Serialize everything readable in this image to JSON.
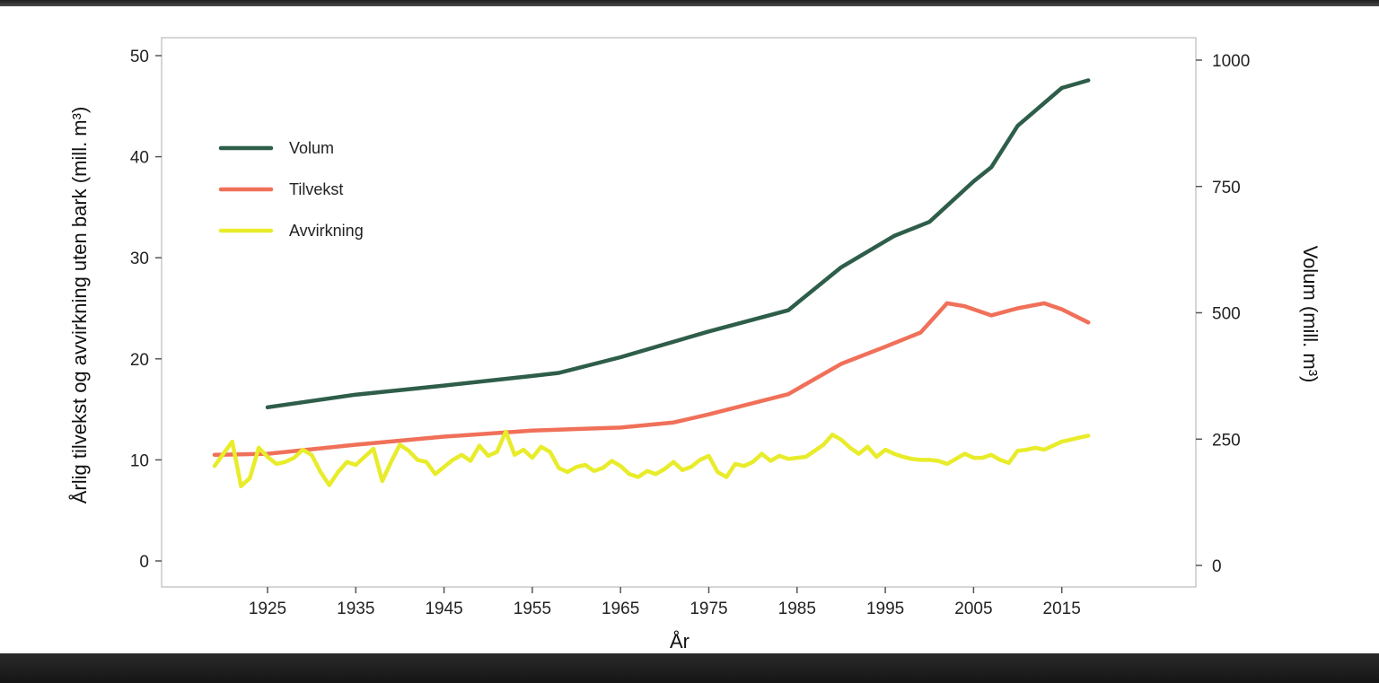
{
  "chart_data": {
    "type": "line",
    "xlabel": "År",
    "ylabel_left": "Årlig tilvekst og avvirkning uten bark (mill. m³)",
    "ylabel_right": "Volum (mill. m³)",
    "xlim": [
      1918,
      2022
    ],
    "ylim_left": [
      0,
      50
    ],
    "ylim_right": [
      0,
      1000
    ],
    "x_ticks": [
      1925,
      1935,
      1945,
      1955,
      1965,
      1975,
      1985,
      1995,
      2005,
      2015
    ],
    "y_ticks_left": [
      0,
      10,
      20,
      30,
      40,
      50
    ],
    "y_ticks_right": [
      0,
      250,
      500,
      750,
      1000
    ],
    "grid": false,
    "legend_position": "top-left",
    "series": [
      {
        "name": "Volum",
        "axis": "right",
        "color": "#2e5e4a",
        "x": [
          1925,
          1935,
          1945,
          1955,
          1958,
          1965,
          1975,
          1984,
          1990,
          1996,
          2000,
          2005,
          2007,
          2010,
          2015,
          2018
        ],
        "y": [
          313,
          338,
          356,
          375,
          381,
          412,
          463,
          505,
          590,
          652,
          680,
          760,
          788,
          870,
          945,
          960
        ]
      },
      {
        "name": "Tilvekst",
        "axis": "left",
        "color": "#f07059",
        "x": [
          1919,
          1925,
          1935,
          1945,
          1955,
          1965,
          1971,
          1975,
          1984,
          1990,
          1995,
          1999,
          2002,
          2004,
          2007,
          2010,
          2013,
          2015,
          2018
        ],
        "y": [
          10.5,
          10.6,
          11.5,
          12.3,
          12.9,
          13.2,
          13.7,
          14.5,
          16.5,
          19.5,
          21.2,
          22.6,
          25.5,
          25.2,
          24.3,
          25.0,
          25.5,
          24.9,
          23.6
        ]
      },
      {
        "name": "Avvirkning",
        "axis": "left",
        "color": "#e8ec2a",
        "x": [
          1919,
          1920,
          1921,
          1922,
          1923,
          1924,
          1925,
          1926,
          1927,
          1928,
          1929,
          1930,
          1931,
          1932,
          1933,
          1934,
          1935,
          1936,
          1937,
          1938,
          1939,
          1940,
          1941,
          1942,
          1943,
          1944,
          1945,
          1946,
          1947,
          1948,
          1949,
          1950,
          1951,
          1952,
          1953,
          1954,
          1955,
          1956,
          1957,
          1958,
          1959,
          1960,
          1961,
          1962,
          1963,
          1964,
          1965,
          1966,
          1967,
          1968,
          1969,
          1970,
          1971,
          1972,
          1973,
          1974,
          1975,
          1976,
          1977,
          1978,
          1979,
          1980,
          1981,
          1982,
          1983,
          1984,
          1985,
          1986,
          1987,
          1988,
          1989,
          1990,
          1991,
          1992,
          1993,
          1994,
          1995,
          1996,
          1997,
          1998,
          1999,
          2000,
          2001,
          2002,
          2003,
          2004,
          2005,
          2006,
          2007,
          2008,
          2009,
          2010,
          2011,
          2012,
          2013,
          2014,
          2015,
          2016,
          2017,
          2018
        ],
        "y": [
          9.4,
          10.6,
          11.8,
          7.4,
          8.2,
          11.2,
          10.3,
          9.6,
          9.8,
          10.2,
          11.0,
          10.5,
          8.8,
          7.5,
          8.8,
          9.8,
          9.5,
          10.3,
          11.1,
          7.9,
          9.8,
          11.5,
          10.9,
          10.0,
          9.8,
          8.6,
          9.3,
          10.0,
          10.5,
          9.9,
          11.4,
          10.4,
          10.8,
          12.8,
          10.5,
          11.0,
          10.2,
          11.3,
          10.8,
          9.2,
          8.8,
          9.3,
          9.5,
          8.9,
          9.2,
          9.9,
          9.4,
          8.6,
          8.3,
          8.9,
          8.6,
          9.1,
          9.8,
          9.0,
          9.3,
          10.0,
          10.4,
          8.8,
          8.3,
          9.6,
          9.4,
          9.8,
          10.6,
          9.9,
          10.4,
          10.1,
          10.2,
          10.3,
          10.9,
          11.5,
          12.5,
          12.0,
          11.2,
          10.6,
          11.3,
          10.3,
          11.0,
          10.6,
          10.3,
          10.1,
          10.0,
          10.0,
          9.9,
          9.6,
          10.1,
          10.6,
          10.2,
          10.2,
          10.5,
          10.0,
          9.7,
          10.9,
          11.0,
          11.2,
          11.0,
          11.4,
          11.8,
          12.0,
          12.2,
          12.4
        ]
      }
    ]
  }
}
